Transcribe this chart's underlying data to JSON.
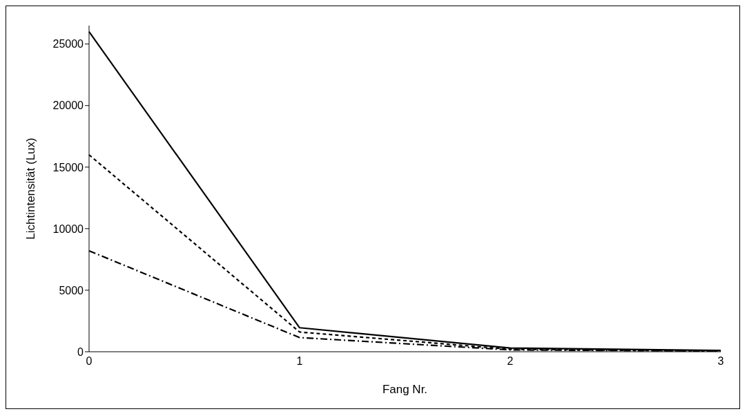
{
  "chart_data": {
    "type": "line",
    "xlabel": "Fang Nr.",
    "ylabel": "Lichtintensität (Lux)",
    "categories": [
      "0",
      "1",
      "2",
      "3"
    ],
    "series": [
      {
        "color": "#000000",
        "line_style": "solid",
        "values": [
          26000,
          1950,
          300,
          100
        ]
      },
      {
        "color": "#000000",
        "line_style": "dashed",
        "values": [
          16000,
          1600,
          200,
          50
        ]
      },
      {
        "color": "#000000",
        "line_style": "dashed-dotted",
        "values": [
          8200,
          1150,
          150,
          50
        ]
      }
    ],
    "ylim": [
      0,
      26500
    ],
    "yticks": [
      0,
      5000,
      10000,
      15000,
      20000,
      25000
    ],
    "grid": false,
    "legend": false,
    "marker": "none"
  }
}
